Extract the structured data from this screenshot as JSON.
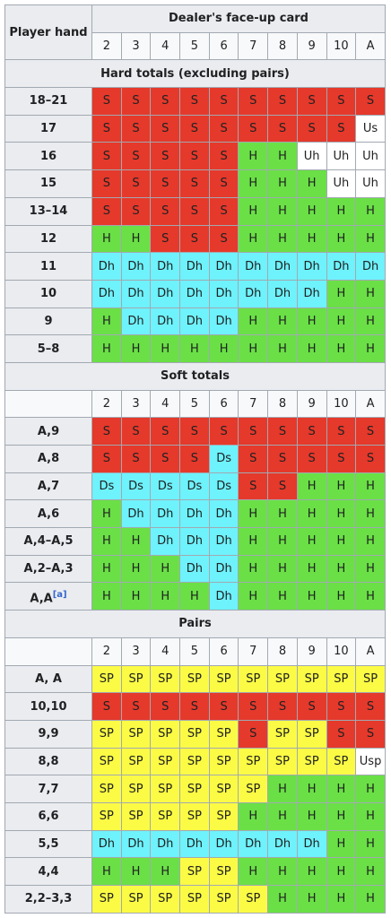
{
  "header": {
    "player_hand": "Player hand",
    "dealer_card": "Dealer's face-up card",
    "cards": [
      "2",
      "3",
      "4",
      "5",
      "6",
      "7",
      "8",
      "9",
      "10",
      "A"
    ]
  },
  "colors": {
    "S": "#e5392b",
    "H": "#6ae046",
    "Dh": "#6ef2fb",
    "Ds": "#6ef2fb",
    "SP": "#fbfb45",
    "Us": "#ffffff",
    "Uh": "#ffffff",
    "Usp": "#ffffff"
  },
  "sections": [
    {
      "title": "Hard totals (excluding pairs)",
      "rows": [
        {
          "hand": "18–21",
          "actions": [
            "S",
            "S",
            "S",
            "S",
            "S",
            "S",
            "S",
            "S",
            "S",
            "S"
          ]
        },
        {
          "hand": "17",
          "actions": [
            "S",
            "S",
            "S",
            "S",
            "S",
            "S",
            "S",
            "S",
            "S",
            "Us"
          ]
        },
        {
          "hand": "16",
          "actions": [
            "S",
            "S",
            "S",
            "S",
            "S",
            "H",
            "H",
            "Uh",
            "Uh",
            "Uh"
          ]
        },
        {
          "hand": "15",
          "actions": [
            "S",
            "S",
            "S",
            "S",
            "S",
            "H",
            "H",
            "H",
            "Uh",
            "Uh"
          ]
        },
        {
          "hand": "13–14",
          "actions": [
            "S",
            "S",
            "S",
            "S",
            "S",
            "H",
            "H",
            "H",
            "H",
            "H"
          ]
        },
        {
          "hand": "12",
          "actions": [
            "H",
            "H",
            "S",
            "S",
            "S",
            "H",
            "H",
            "H",
            "H",
            "H"
          ]
        },
        {
          "hand": "11",
          "actions": [
            "Dh",
            "Dh",
            "Dh",
            "Dh",
            "Dh",
            "Dh",
            "Dh",
            "Dh",
            "Dh",
            "Dh"
          ]
        },
        {
          "hand": "10",
          "actions": [
            "Dh",
            "Dh",
            "Dh",
            "Dh",
            "Dh",
            "Dh",
            "Dh",
            "Dh",
            "H",
            "H"
          ]
        },
        {
          "hand": "9",
          "actions": [
            "H",
            "Dh",
            "Dh",
            "Dh",
            "Dh",
            "H",
            "H",
            "H",
            "H",
            "H"
          ]
        },
        {
          "hand": "5–8",
          "actions": [
            "H",
            "H",
            "H",
            "H",
            "H",
            "H",
            "H",
            "H",
            "H",
            "H"
          ]
        }
      ]
    },
    {
      "title": "Soft totals",
      "cards": [
        "2",
        "3",
        "4",
        "5",
        "6",
        "7",
        "8",
        "9",
        "10",
        "A"
      ],
      "rows": [
        {
          "hand": "A,9",
          "actions": [
            "S",
            "S",
            "S",
            "S",
            "S",
            "S",
            "S",
            "S",
            "S",
            "S"
          ]
        },
        {
          "hand": "A,8",
          "actions": [
            "S",
            "S",
            "S",
            "S",
            "Ds",
            "S",
            "S",
            "S",
            "S",
            "S"
          ]
        },
        {
          "hand": "A,7",
          "actions": [
            "Ds",
            "Ds",
            "Ds",
            "Ds",
            "Ds",
            "S",
            "S",
            "H",
            "H",
            "H"
          ]
        },
        {
          "hand": "A,6",
          "actions": [
            "H",
            "Dh",
            "Dh",
            "Dh",
            "Dh",
            "H",
            "H",
            "H",
            "H",
            "H"
          ]
        },
        {
          "hand": "A,4–A,5",
          "actions": [
            "H",
            "H",
            "Dh",
            "Dh",
            "Dh",
            "H",
            "H",
            "H",
            "H",
            "H"
          ]
        },
        {
          "hand": "A,2–A,3",
          "actions": [
            "H",
            "H",
            "H",
            "Dh",
            "Dh",
            "H",
            "H",
            "H",
            "H",
            "H"
          ]
        },
        {
          "hand": "A,A",
          "note": "[a]",
          "actions": [
            "H",
            "H",
            "H",
            "H",
            "Dh",
            "H",
            "H",
            "H",
            "H",
            "H"
          ]
        }
      ]
    },
    {
      "title": "Pairs",
      "cards": [
        "2",
        "3",
        "4",
        "5",
        "6",
        "7",
        "8",
        "9",
        "10",
        "A"
      ],
      "rows": [
        {
          "hand": "A, A",
          "actions": [
            "SP",
            "SP",
            "SP",
            "SP",
            "SP",
            "SP",
            "SP",
            "SP",
            "SP",
            "SP"
          ]
        },
        {
          "hand": "10,10",
          "actions": [
            "S",
            "S",
            "S",
            "S",
            "S",
            "S",
            "S",
            "S",
            "S",
            "S"
          ]
        },
        {
          "hand": "9,9",
          "actions": [
            "SP",
            "SP",
            "SP",
            "SP",
            "SP",
            "S",
            "SP",
            "SP",
            "S",
            "S"
          ]
        },
        {
          "hand": "8,8",
          "actions": [
            "SP",
            "SP",
            "SP",
            "SP",
            "SP",
            "SP",
            "SP",
            "SP",
            "SP",
            "Usp"
          ]
        },
        {
          "hand": "7,7",
          "actions": [
            "SP",
            "SP",
            "SP",
            "SP",
            "SP",
            "SP",
            "H",
            "H",
            "H",
            "H"
          ]
        },
        {
          "hand": "6,6",
          "actions": [
            "SP",
            "SP",
            "SP",
            "SP",
            "SP",
            "H",
            "H",
            "H",
            "H",
            "H"
          ]
        },
        {
          "hand": "5,5",
          "actions": [
            "Dh",
            "Dh",
            "Dh",
            "Dh",
            "Dh",
            "Dh",
            "Dh",
            "Dh",
            "H",
            "H"
          ]
        },
        {
          "hand": "4,4",
          "actions": [
            "H",
            "H",
            "H",
            "SP",
            "SP",
            "H",
            "H",
            "H",
            "H",
            "H"
          ]
        },
        {
          "hand": "2,2–3,3",
          "actions": [
            "SP",
            "SP",
            "SP",
            "SP",
            "SP",
            "SP",
            "H",
            "H",
            "H",
            "H"
          ]
        }
      ]
    }
  ]
}
